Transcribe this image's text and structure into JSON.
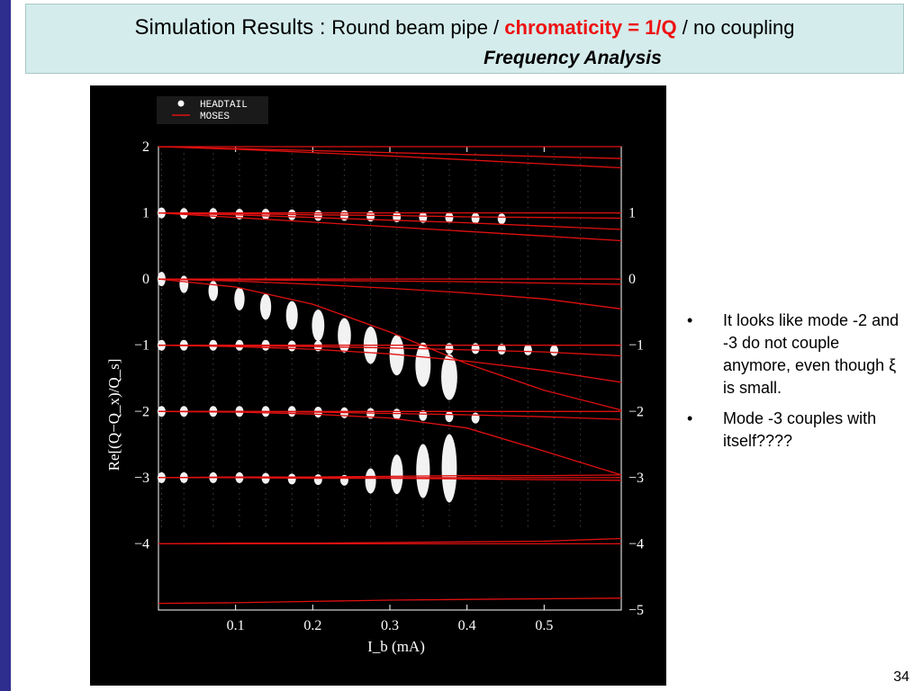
{
  "slide": {
    "title": {
      "part1": "Simulation Results  : ",
      "part2": "Round beam pipe / ",
      "part3": "chromaticity = 1/Q",
      "part4": " / no coupling",
      "line2": "Frequency Analysis"
    },
    "bullets": [
      {
        "text": "It looks like mode -2 and -3 do not couple anymore, even though ξ is small."
      },
      {
        "text": "Mode -3 couples with itself????"
      }
    ],
    "bullet_symbol": "•",
    "page_number": "34"
  },
  "colors": {
    "header_bg": "#d4ecec",
    "left_bar": "#2e2e8f",
    "accent_red": "#ee1111",
    "plot_bg": "#000000",
    "moses_line": "#e01010",
    "headtail_marker": "#ffffff"
  },
  "chart_data": {
    "type": "scatter",
    "xlabel": "I_b  (mA)",
    "ylabel": "Re[(Q−Q_x)/Q_s]",
    "xlim": [
      0.0,
      0.6
    ],
    "ylim": [
      -5,
      2
    ],
    "x_ticks": [
      "0.1",
      "0.2",
      "0.3",
      "0.4",
      "0.5"
    ],
    "y_ticks_left": [
      "2",
      "1",
      "0",
      "−1",
      "−2",
      "−3",
      "−4"
    ],
    "y_ticks_right": [
      "1",
      "0",
      "−1",
      "−2",
      "−3",
      "−4",
      "−5"
    ],
    "legend": {
      "position": "top-left",
      "entries": [
        {
          "label": "HEADTAIL",
          "marker": "dot"
        },
        {
          "label": "MOSES",
          "marker": "line"
        }
      ]
    },
    "series": [
      {
        "name": "HEADTAIL",
        "kind": "frequency-spectrum",
        "x": [
          0.004,
          0.033,
          0.071,
          0.105,
          0.139,
          0.173,
          0.207,
          0.241,
          0.275,
          0.309,
          0.343,
          0.377,
          0.411,
          0.445,
          0.479,
          0.513,
          0.547
        ],
        "blobs": [
          {
            "mode": 1,
            "y": [
              1.0,
              0.99,
              0.99,
              0.98,
              0.98,
              0.97,
              0.96,
              0.96,
              0.95,
              0.94,
              0.93,
              0.93,
              0.92,
              0.91
            ]
          },
          {
            "mode": 0,
            "y": [
              0.0,
              -0.08,
              -0.18,
              -0.3,
              -0.42,
              -0.55,
              -0.7,
              -0.85,
              -1.0,
              -1.15,
              -1.3,
              -1.48
            ]
          },
          {
            "mode": -1,
            "y": [
              -1.0,
              -1.0,
              -1.0,
              -1.0,
              -1.0,
              -1.01,
              -1.01,
              -1.02,
              -1.03,
              -1.03,
              -1.04,
              -1.05,
              -1.05,
              -1.06,
              -1.07,
              -1.08
            ]
          },
          {
            "mode": -2,
            "y": [
              -2.0,
              -2.0,
              -2.0,
              -2.0,
              -2.0,
              -2.0,
              -2.01,
              -2.02,
              -2.03,
              -2.04,
              -2.06,
              -2.08,
              -2.1
            ]
          },
          {
            "mode": -3,
            "y": [
              -3.0,
              -3.0,
              -3.0,
              -3.0,
              -3.01,
              -3.02,
              -3.03,
              -3.04,
              -3.05,
              -2.95,
              -2.9,
              -2.86
            ]
          }
        ]
      },
      {
        "name": "MOSES",
        "kind": "lines",
        "x": [
          0.0,
          0.1,
          0.2,
          0.3,
          0.4,
          0.5,
          0.6
        ],
        "lines": [
          [
            2.0,
            2.0,
            2.0,
            2.0,
            2.0,
            2.0,
            2.0
          ],
          [
            2.0,
            1.97,
            1.94,
            1.91,
            1.88,
            1.85,
            1.82
          ],
          [
            2.0,
            1.96,
            1.91,
            1.86,
            1.8,
            1.74,
            1.68
          ],
          [
            1.0,
            1.0,
            1.0,
            1.0,
            1.0,
            1.0,
            1.0
          ],
          [
            1.0,
            0.99,
            0.97,
            0.96,
            0.94,
            0.93,
            0.92
          ],
          [
            1.0,
            0.97,
            0.93,
            0.89,
            0.85,
            0.8,
            0.75
          ],
          [
            1.0,
            0.93,
            0.86,
            0.79,
            0.72,
            0.65,
            0.58
          ],
          [
            0.0,
            0.0,
            0.0,
            0.0,
            0.0,
            0.0,
            0.0
          ],
          [
            0.0,
            -0.01,
            -0.02,
            -0.03,
            -0.04,
            -0.06,
            -0.08
          ],
          [
            0.0,
            -0.03,
            -0.08,
            -0.14,
            -0.21,
            -0.3,
            -0.45
          ],
          [
            0.0,
            -0.12,
            -0.38,
            -0.8,
            -1.28,
            -1.68,
            -1.98
          ],
          [
            -1.0,
            -1.0,
            -1.0,
            -1.0,
            -1.0,
            -1.0,
            -1.0
          ],
          [
            -1.0,
            -1.01,
            -1.02,
            -1.04,
            -1.07,
            -1.1,
            -1.16
          ],
          [
            -1.0,
            -1.02,
            -1.06,
            -1.13,
            -1.24,
            -1.38,
            -1.56
          ],
          [
            -2.0,
            -2.0,
            -2.0,
            -2.0,
            -2.0,
            -2.0,
            -2.0
          ],
          [
            -2.0,
            -2.0,
            -2.01,
            -2.03,
            -2.05,
            -2.08,
            -2.12
          ],
          [
            -2.0,
            -2.01,
            -2.04,
            -2.1,
            -2.25,
            -2.6,
            -2.96
          ],
          [
            -3.0,
            -3.0,
            -3.0,
            -3.0,
            -3.0,
            -3.0,
            -3.0
          ],
          [
            -3.0,
            -2.99,
            -2.99,
            -2.98,
            -2.97,
            -2.97,
            -2.96
          ],
          [
            -3.0,
            -3.0,
            -3.01,
            -3.01,
            -3.02,
            -3.03,
            -3.04
          ],
          [
            -4.0,
            -4.0,
            -4.0,
            -4.0,
            -4.0,
            -4.0,
            -4.0
          ],
          [
            -4.0,
            -3.99,
            -3.99,
            -3.98,
            -3.97,
            -3.96,
            -3.92
          ],
          [
            -4.9,
            -4.89,
            -4.87,
            -4.85,
            -4.84,
            -4.83,
            -4.82
          ]
        ]
      }
    ]
  }
}
